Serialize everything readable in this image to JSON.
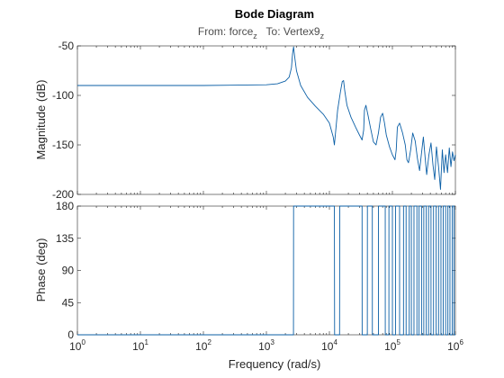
{
  "chart_data": {
    "type": "line",
    "title": "Bode Diagram",
    "subtitle": {
      "from_label": "From: ",
      "from_base": "force",
      "from_sub": "z",
      "to_label": "To: ",
      "to_base": "Vertex9",
      "to_sub": "z"
    },
    "xlabel": "Frequency  (rad/s)",
    "xscale": "log",
    "xlim": [
      1,
      1000000
    ],
    "xticks": [
      {
        "base": "10",
        "exp": "0"
      },
      {
        "base": "10",
        "exp": "1"
      },
      {
        "base": "10",
        "exp": "2"
      },
      {
        "base": "10",
        "exp": "3"
      },
      {
        "base": "10",
        "exp": "4"
      },
      {
        "base": "10",
        "exp": "5"
      },
      {
        "base": "10",
        "exp": "6"
      }
    ],
    "magnitude": {
      "ylabel": "Magnitude (dB)",
      "ylim": [
        -200,
        -50
      ],
      "yticks": [
        "-50",
        "-100",
        "-150",
        "-200"
      ],
      "series": [
        {
          "color": "#0b5fa6",
          "x": [
            1,
            10,
            100,
            1000,
            1500,
            2000,
            2300,
            2500,
            2600,
            2700,
            2800,
            3000,
            3500,
            4500,
            6000,
            8000,
            10000,
            11500,
            12000,
            12500,
            13500,
            15000,
            16000,
            16800,
            17500,
            19000,
            22000,
            26000,
            30000,
            33000,
            35000,
            36000,
            38000,
            41000,
            45000,
            50000,
            55000,
            60000,
            65000,
            70000,
            75000,
            80000,
            90000,
            100000,
            110000,
            115000,
            120000,
            130000,
            145000,
            160000,
            170000,
            180000,
            195000,
            210000,
            230000,
            250000,
            270000,
            290000,
            310000,
            330000,
            350000,
            380000,
            410000,
            440000,
            470000,
            500000,
            540000,
            580000,
            620000,
            660000,
            700000,
            750000,
            800000,
            850000,
            900000,
            950000,
            1000000
          ],
          "y": [
            -90,
            -90,
            -90,
            -89.3,
            -88.2,
            -85.5,
            -81.5,
            -72,
            -58,
            -51,
            -60,
            -75,
            -90,
            -102,
            -111,
            -119,
            -128,
            -142,
            -150,
            -138,
            -115,
            -96,
            -86,
            -85,
            -95,
            -110,
            -122,
            -132,
            -140,
            -145,
            -135,
            -115,
            -110,
            -120,
            -133,
            -147,
            -150,
            -138,
            -122,
            -118,
            -128,
            -140,
            -152,
            -160,
            -165,
            -155,
            -132,
            -128,
            -138,
            -150,
            -165,
            -168,
            -155,
            -138,
            -146,
            -164,
            -176,
            -158,
            -142,
            -162,
            -180,
            -160,
            -148,
            -170,
            -185,
            -152,
            -172,
            -195,
            -155,
            -178,
            -160,
            -178,
            -153,
            -172,
            -157,
            -166,
            -160
          ]
        }
      ]
    },
    "phase": {
      "ylabel": "Phase (deg)",
      "ylim": [
        0,
        180
      ],
      "yticks": [
        "0",
        "45",
        "90",
        "135",
        "180"
      ],
      "series": [
        {
          "color": "#0b5fa6",
          "x": [
            1,
            10,
            100,
            1000,
            2690,
            2700,
            12000,
            12100,
            14500,
            14600,
            33000,
            33100,
            40000,
            40100,
            48000,
            48100,
            60000,
            60100,
            77000,
            77100,
            88000,
            88100,
            100000,
            100100,
            112000,
            112100,
            130000,
            130100,
            150000,
            150100,
            165000,
            165100,
            185000,
            185100,
            200000,
            200100,
            220000,
            220100,
            245000,
            245100,
            265000,
            265100,
            290000,
            290100,
            315000,
            315100,
            345000,
            345100,
            375000,
            375100,
            410000,
            410100,
            450000,
            450100,
            495000,
            495100,
            540000,
            540100,
            590000,
            590100,
            640000,
            640100,
            700000,
            700100,
            760000,
            760100,
            820000,
            820100,
            890000,
            890100,
            950000,
            950100,
            1000000
          ],
          "y": [
            0,
            0,
            0,
            0,
            0,
            180,
            180,
            0,
            0,
            180,
            180,
            0,
            0,
            180,
            180,
            0,
            0,
            180,
            180,
            0,
            0,
            180,
            180,
            0,
            0,
            180,
            180,
            0,
            0,
            180,
            180,
            0,
            0,
            180,
            180,
            0,
            0,
            180,
            180,
            0,
            0,
            180,
            180,
            0,
            0,
            180,
            180,
            0,
            0,
            180,
            180,
            0,
            0,
            180,
            180,
            0,
            0,
            180,
            180,
            0,
            0,
            180,
            180,
            0,
            0,
            180,
            180,
            0,
            0,
            180,
            180,
            0,
            0
          ]
        }
      ]
    }
  }
}
